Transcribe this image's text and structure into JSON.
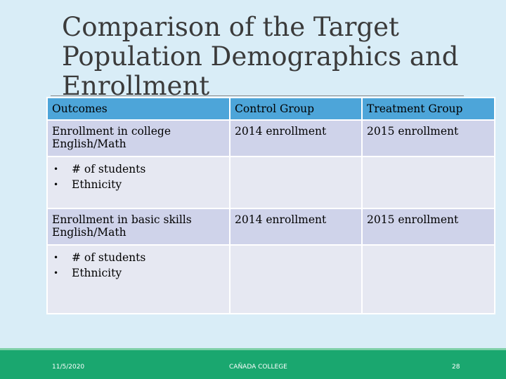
{
  "slide": {
    "title": "Comparison of the Target Population Demographics and Enrollment"
  },
  "table": {
    "headers": [
      "Outcomes",
      "Control Group",
      "Treatment Group"
    ],
    "rows": [
      {
        "outcome": "Enrollment in college English/Math",
        "control": "2014 enrollment",
        "treatment": "2015 enrollment"
      },
      {
        "bullets": [
          "# of students",
          "Ethnicity"
        ],
        "control": "",
        "treatment": ""
      },
      {
        "outcome": "Enrollment in basic skills English/Math",
        "control": "2014 enrollment",
        "treatment": "2015 enrollment"
      },
      {
        "bullets": [
          "# of students",
          "Ethnicity"
        ],
        "control": "",
        "treatment": ""
      }
    ]
  },
  "footer": {
    "date": "11/5/2020",
    "org": "CAÑADA COLLEGE",
    "page": "28"
  },
  "colors": {
    "background": "#d9edf7",
    "header": "#4da5d9",
    "row_dark": "#cfd3ea",
    "row_light": "#e6e8f2",
    "footer": "#1aa76f"
  }
}
